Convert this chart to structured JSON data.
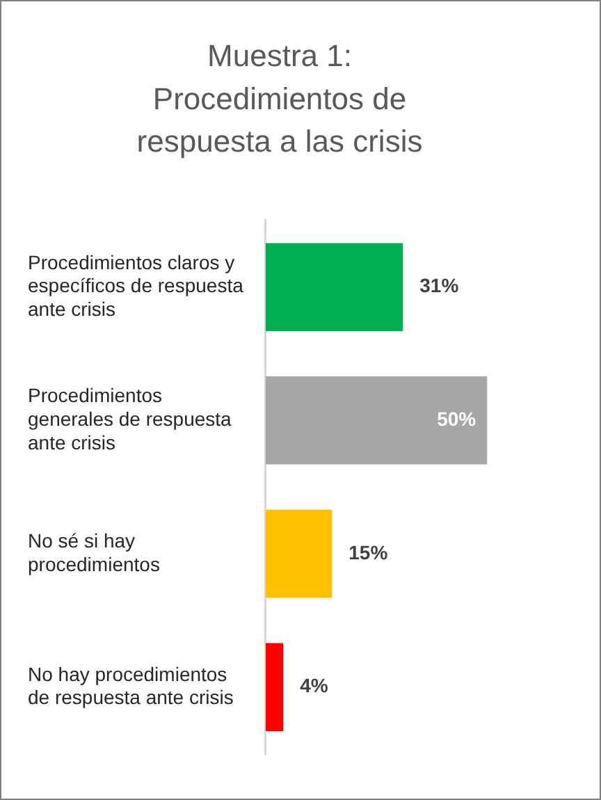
{
  "chart_data": {
    "type": "bar",
    "orientation": "horizontal",
    "title": "Muestra 1: Procedimientos de respuesta a las crisis",
    "categories": [
      "Procedimientos claros y específicos de respuesta ante crisis",
      "Procedimientos generales de respuesta ante crisis",
      "No sé si hay procedimientos",
      "No hay procedimientos de respuesta ante crisis"
    ],
    "values": [
      31,
      50,
      15,
      4
    ],
    "colors": [
      "#00b050",
      "#a6a6a6",
      "#ffc000",
      "#ff0000"
    ],
    "value_labels": [
      "31%",
      "50%",
      "15%",
      "4%"
    ],
    "grid": false,
    "legend": false
  }
}
